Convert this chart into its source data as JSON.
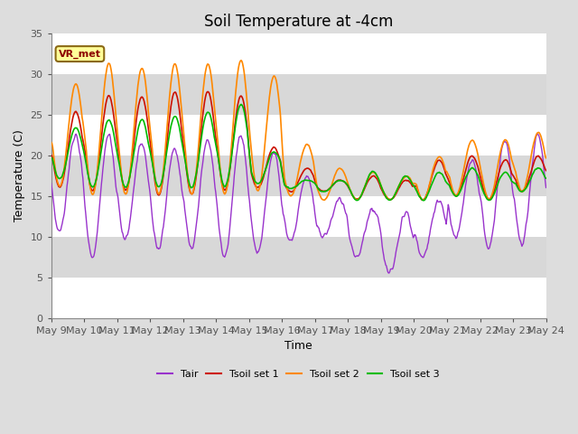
{
  "title": "Soil Temperature at -4cm",
  "xlabel": "Time",
  "ylabel": "Temperature (C)",
  "ylim": [
    0,
    35
  ],
  "yticks": [
    0,
    5,
    10,
    15,
    20,
    25,
    30,
    35
  ],
  "x_tick_labels": [
    "May 9",
    "May 10",
    "May 11",
    "May 12",
    "May 13",
    "May 14",
    "May 15",
    "May 16",
    "May 17",
    "May 18",
    "May 19",
    "May 20",
    "May 21",
    "May 22",
    "May 23",
    "May 24"
  ],
  "annotation_text": "VR_met",
  "annotation_box_color": "#ffff99",
  "annotation_text_color": "#8b0000",
  "series_colors": {
    "Tair": "#9933cc",
    "Tsoil_set1": "#cc1100",
    "Tsoil_set2": "#ff8800",
    "Tsoil_set3": "#00bb00"
  },
  "legend_labels": [
    "Tair",
    "Tsoil set 1",
    "Tsoil set 2",
    "Tsoil set 3"
  ],
  "bg_color": "#dddddd",
  "plot_bg_color": "#e8e8e8",
  "band_light": "#e8e8e8",
  "band_dark": "#d8d8d8",
  "grid_color": "#ffffff",
  "title_fontsize": 12,
  "axis_label_fontsize": 9,
  "tick_label_fontsize": 8
}
